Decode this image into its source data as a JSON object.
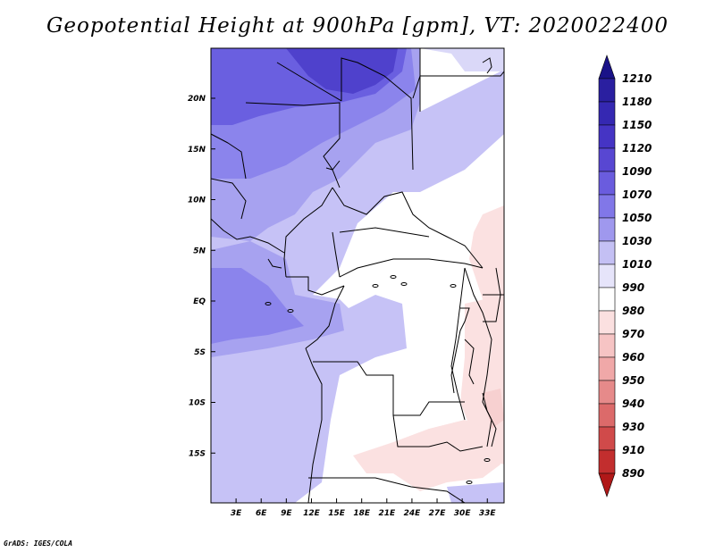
{
  "title": "Geopotential Height at 900hPa [gpm], VT: 2020022400",
  "credit": "GrADS: IGES/COLA",
  "map": {
    "lat_labels": [
      "20N",
      "15N",
      "10N",
      "5N",
      "EQ",
      "5S",
      "10S",
      "15S"
    ],
    "lon_labels": [
      "3E",
      "6E",
      "9E",
      "12E",
      "15E",
      "18E",
      "21E",
      "24E",
      "27E",
      "30E",
      "33E"
    ],
    "lat_range": [
      -20,
      25
    ],
    "lon_range": [
      0,
      35
    ]
  },
  "colorbar": {
    "levels": [
      "1210",
      "1180",
      "1150",
      "1120",
      "1090",
      "1070",
      "1050",
      "1030",
      "1010",
      "990",
      "980",
      "970",
      "960",
      "950",
      "940",
      "930",
      "910",
      "890"
    ],
    "colors": [
      "#1a1288",
      "#2a1fa0",
      "#3528b2",
      "#4534c4",
      "#5847d2",
      "#6a5cde",
      "#8177e8",
      "#9f98ee",
      "#c4c0f4",
      "#e6e4fa",
      "#ffffff",
      "#fbe0e0",
      "#f6c4c4",
      "#f0a8a8",
      "#e68a8a",
      "#dc6a6a",
      "#d04a4a",
      "#c22e2e",
      "#b01818"
    ]
  },
  "palette": {
    "deep": "#4f41cc",
    "dark": "#6a5fe0",
    "mid": "#8b84ec",
    "light": "#a7a2f0",
    "pale": "#c6c2f6",
    "paler": "#dad8f8",
    "white": "#ffffff",
    "pink": "#fbe1e1",
    "pink2": "#f7d0d0",
    "line": "#000000"
  }
}
